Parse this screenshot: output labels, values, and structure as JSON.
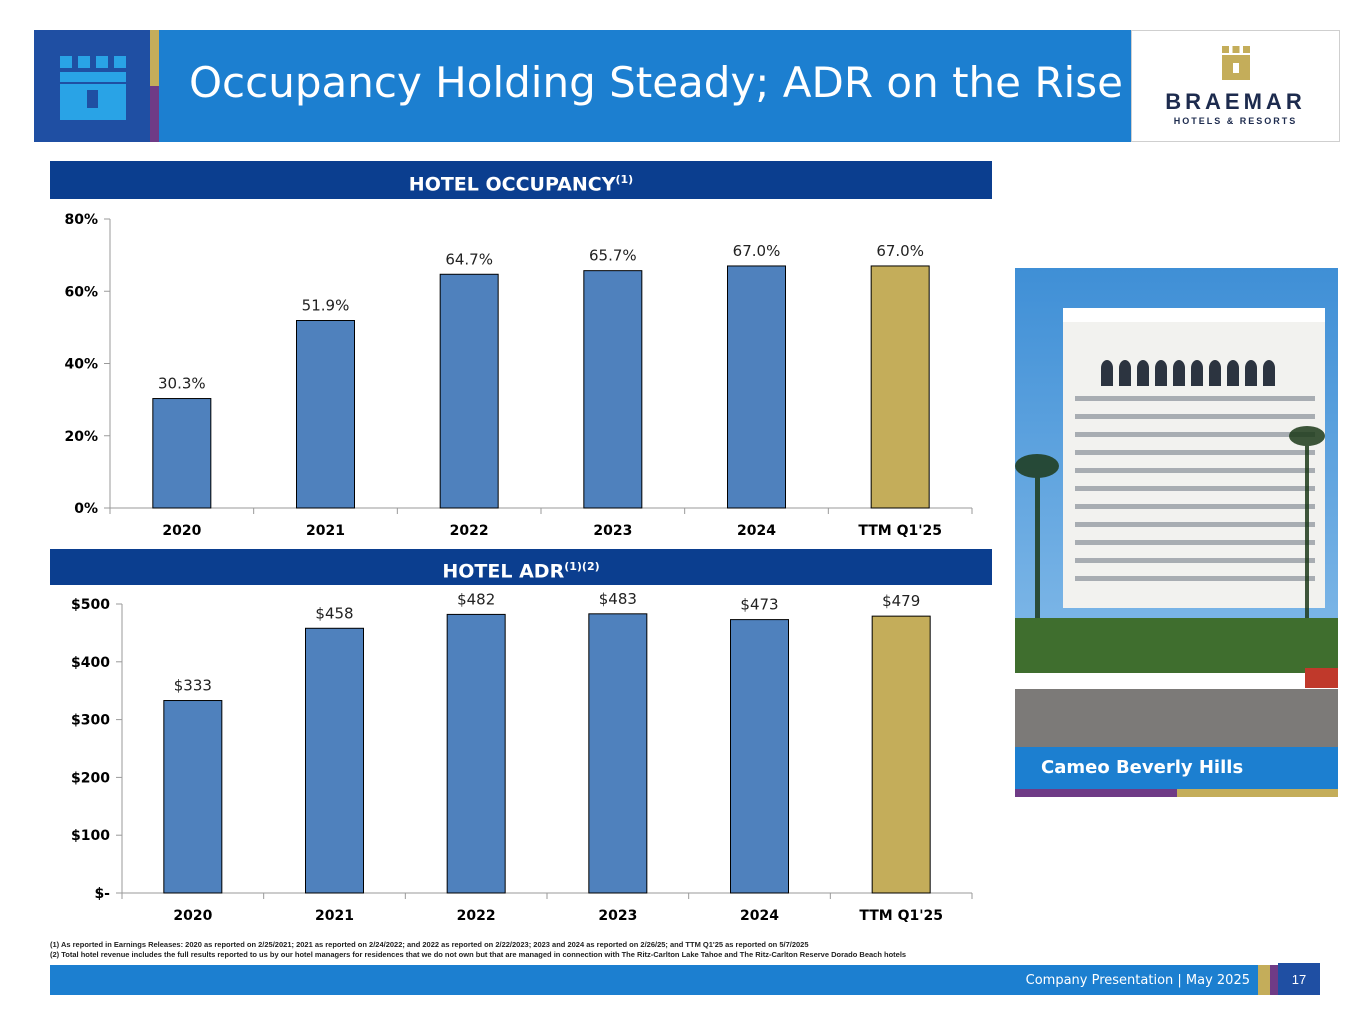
{
  "header": {
    "title": "Occupancy Holding Steady; ADR on the Rise",
    "logo_name": "BRAEMAR",
    "logo_subtitle": "HOTELS & RESORTS"
  },
  "colors": {
    "navy": "#0b3e8f",
    "blue": "#1c7fd0",
    "dark_blue": "#1f4fa3",
    "bar_blue": "#4f81bd",
    "bar_gold": "#c4ad5a",
    "purple": "#6f3b86"
  },
  "sections": {
    "occupancy_title": "HOTEL OCCUPANCY",
    "occupancy_sup": "(1)",
    "adr_title": "HOTEL ADR",
    "adr_sup": "(1)(2)"
  },
  "chart_data": [
    {
      "type": "bar",
      "title": "HOTEL OCCUPANCY(1)",
      "categories": [
        "2020",
        "2021",
        "2022",
        "2023",
        "2024",
        "TTM Q1'25"
      ],
      "values": [
        30.3,
        51.9,
        64.7,
        65.7,
        67.0,
        67.0
      ],
      "data_labels": [
        "30.3%",
        "51.9%",
        "64.7%",
        "65.7%",
        "67.0%",
        "67.0%"
      ],
      "y_ticks": [
        "0%",
        "20%",
        "40%",
        "60%",
        "80%"
      ],
      "ylim": [
        0,
        80
      ],
      "highlight_index": 5,
      "grid": false
    },
    {
      "type": "bar",
      "title": "HOTEL ADR(1)(2)",
      "categories": [
        "2020",
        "2021",
        "2022",
        "2023",
        "2024",
        "TTM Q1'25"
      ],
      "values": [
        333,
        458,
        482,
        483,
        473,
        479
      ],
      "data_labels": [
        "$333",
        "$458",
        "$482",
        "$483",
        "$473",
        "$479"
      ],
      "y_ticks": [
        "$-",
        "$100",
        "$200",
        "$300",
        "$400",
        "$500"
      ],
      "ylim": [
        0,
        500
      ],
      "highlight_index": 5,
      "grid": false
    }
  ],
  "photo": {
    "caption": "Cameo Beverly Hills"
  },
  "footnotes": [
    "(1) As reported in Earnings Releases: 2020 as reported on 2/25/2021; 2021 as reported on 2/24/2022; and 2022 as reported on 2/22/2023; 2023 and 2024 as reported on 2/26/25; and TTM Q1'25 as reported on 5/7/2025",
    "(2) Total hotel revenue includes the full results reported to us by our hotel managers for residences that we do not own but that are managed in connection with The Ritz-Carlton Lake Tahoe and The Ritz-Carlton Reserve Dorado Beach hotels"
  ],
  "footer": {
    "text": "Company Presentation | May 2025",
    "page_number": "17"
  }
}
